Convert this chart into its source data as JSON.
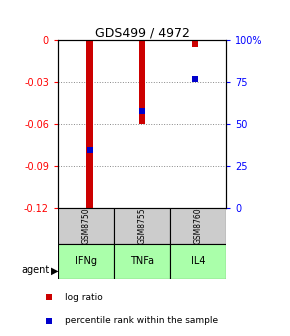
{
  "title": "GDS499 / 4972",
  "samples": [
    "GSM8750",
    "GSM8755",
    "GSM8760"
  ],
  "agents": [
    "IFNg",
    "TNFa",
    "IL4"
  ],
  "log_ratios": [
    -0.12,
    -0.06,
    -0.005
  ],
  "percentile_ranks": [
    35,
    58,
    77
  ],
  "ylim_left": [
    -0.12,
    0
  ],
  "ylim_right": [
    0,
    100
  ],
  "yticks_left": [
    0,
    -0.03,
    -0.06,
    -0.09,
    -0.12
  ],
  "yticks_right": [
    0,
    25,
    50,
    75,
    100
  ],
  "bar_color": "#cc0000",
  "dot_color": "#0000cc",
  "sample_box_color": "#cccccc",
  "agent_box_color": "#aaffaa",
  "grid_color": "#888888",
  "bar_width": 0.12
}
